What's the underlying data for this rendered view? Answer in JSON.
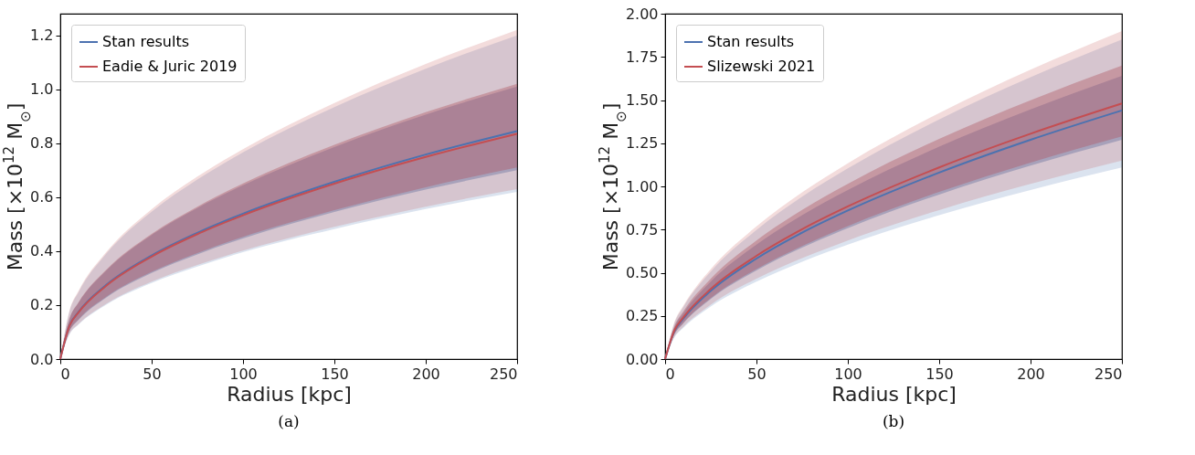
{
  "chart_data": [
    {
      "type": "line",
      "xlabel": "Radius [kpc]",
      "ylabel": "Mass [×10$^{12}$ M$_{⊙}$]",
      "annotations": [
        "(a)"
      ],
      "x": [
        0,
        5,
        10,
        25,
        50,
        75,
        100,
        150,
        200,
        250
      ],
      "xlim": [
        0,
        250
      ],
      "xticks": [
        0,
        50,
        100,
        150,
        200,
        250
      ],
      "ylim": [
        0,
        1.28
      ],
      "yticks": [
        {
          "value": 0,
          "label": "0.0"
        },
        {
          "value": 0.2,
          "label": "0.2"
        },
        {
          "value": 0.4,
          "label": "0.4"
        },
        {
          "value": 0.6,
          "label": "0.6"
        },
        {
          "value": 0.8,
          "label": "0.8"
        },
        {
          "value": 1.0,
          "label": "1.0"
        },
        {
          "value": 1.2,
          "label": "1.2"
        }
      ],
      "grid": false,
      "legend": "top left",
      "series": [
        {
          "name": "Stan results",
          "color": "#4c72b0",
          "values": [
            0,
            0.124,
            0.175,
            0.274,
            0.384,
            0.468,
            0.539,
            0.657,
            0.758,
            0.845
          ],
          "lower": [
            0,
            0.103,
            0.145,
            0.227,
            0.319,
            0.388,
            0.447,
            0.545,
            0.628,
            0.7
          ],
          "upper": [
            0,
            0.148,
            0.209,
            0.327,
            0.46,
            0.56,
            0.644,
            0.786,
            0.906,
            1.01
          ]
        },
        {
          "name": "Eadie & Juric 2019",
          "color": "#c44e52",
          "values": [
            0,
            0.123,
            0.173,
            0.271,
            0.38,
            0.463,
            0.533,
            0.65,
            0.749,
            0.835
          ],
          "lower": [
            0,
            0.104,
            0.147,
            0.23,
            0.323,
            0.393,
            0.453,
            0.552,
            0.637,
            0.71
          ],
          "upper": [
            0,
            0.15,
            0.211,
            0.33,
            0.464,
            0.565,
            0.651,
            0.794,
            0.915,
            1.02
          ]
        },
        {
          "color": "#4c72b0",
          "values": [
            null,
            null,
            null,
            null,
            null,
            null,
            null,
            null,
            null,
            null
          ],
          "lower": [
            0,
            0.091,
            0.128,
            0.201,
            0.282,
            0.343,
            0.396,
            0.482,
            0.556,
            0.62
          ],
          "upper": [
            0,
            0.176,
            0.248,
            0.389,
            0.546,
            0.665,
            0.766,
            0.934,
            1.076,
            1.2
          ]
        },
        {
          "color": "#c44e52",
          "values": [
            null,
            null,
            null,
            null,
            null,
            null,
            null,
            null,
            null,
            null
          ],
          "lower": [
            0,
            0.093,
            0.13,
            0.204,
            0.287,
            0.349,
            0.402,
            0.49,
            0.565,
            0.63
          ],
          "upper": [
            0,
            0.179,
            0.253,
            0.395,
            0.555,
            0.676,
            0.778,
            0.949,
            1.094,
            1.22
          ]
        }
      ]
    },
    {
      "type": "line",
      "xlabel": "Radius [kpc]",
      "ylabel": "Mass [×10$^{12}$ M$_{⊙}$]",
      "annotations": [
        "(b)"
      ],
      "x": [
        0,
        5,
        10,
        25,
        50,
        75,
        100,
        150,
        200,
        250
      ],
      "xlim": [
        0,
        250
      ],
      "xticks": [
        0,
        50,
        100,
        150,
        200,
        250
      ],
      "ylim": [
        0,
        2
      ],
      "yticks": [
        {
          "value": 0,
          "label": "0.00"
        },
        {
          "value": 0.25,
          "label": "0.25"
        },
        {
          "value": 0.5,
          "label": "0.50"
        },
        {
          "value": 0.75,
          "label": "0.75"
        },
        {
          "value": 1.0,
          "label": "1.00"
        },
        {
          "value": 1.25,
          "label": "1.25"
        },
        {
          "value": 1.5,
          "label": "1.50"
        },
        {
          "value": 1.75,
          "label": "1.75"
        },
        {
          "value": 2.0,
          "label": "2.00"
        }
      ],
      "grid": false,
      "legend": "top left",
      "series": [
        {
          "name": "Stan results",
          "color": "#4c72b0",
          "values": [
            0,
            0.16,
            0.235,
            0.395,
            0.582,
            0.732,
            0.86,
            1.08,
            1.27,
            1.44
          ],
          "lower": [
            0,
            0.141,
            0.207,
            0.348,
            0.513,
            0.645,
            0.758,
            0.953,
            1.12,
            1.27
          ],
          "upper": [
            0,
            0.182,
            0.267,
            0.449,
            0.663,
            0.833,
            0.979,
            1.23,
            1.446,
            1.64
          ]
        },
        {
          "name": "Slizewski 2021",
          "color": "#c44e52",
          "values": [
            0,
            0.164,
            0.241,
            0.406,
            0.598,
            0.752,
            0.884,
            1.11,
            1.305,
            1.48
          ],
          "lower": [
            0,
            0.143,
            0.21,
            0.353,
            0.521,
            0.655,
            0.77,
            0.968,
            1.138,
            1.29
          ],
          "upper": [
            0,
            0.189,
            0.277,
            0.466,
            0.687,
            0.864,
            1.015,
            1.275,
            1.499,
            1.7
          ]
        },
        {
          "color": "#4c72b0",
          "values": [
            null,
            null,
            null,
            null,
            null,
            null,
            null,
            null,
            null,
            null
          ],
          "lower": [
            0,
            0.123,
            0.181,
            0.304,
            0.448,
            0.564,
            0.663,
            0.833,
            0.979,
            1.11
          ],
          "upper": [
            0,
            0.205,
            0.302,
            0.507,
            0.747,
            0.94,
            1.104,
            1.388,
            1.632,
            1.85
          ]
        },
        {
          "color": "#c44e52",
          "values": [
            null,
            null,
            null,
            null,
            null,
            null,
            null,
            null,
            null,
            null
          ],
          "lower": [
            0,
            0.128,
            0.187,
            0.315,
            0.465,
            0.584,
            0.687,
            0.863,
            1.014,
            1.15
          ],
          "upper": [
            0,
            0.211,
            0.31,
            0.521,
            0.768,
            0.965,
            1.134,
            1.425,
            1.676,
            1.9
          ]
        }
      ]
    }
  ]
}
